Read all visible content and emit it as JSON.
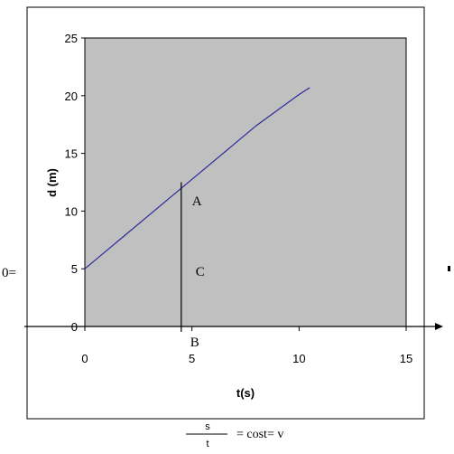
{
  "chart_data": {
    "type": "line",
    "title": "",
    "xlabel": "t(s)",
    "ylabel": "d (m)",
    "xlim": [
      0,
      15
    ],
    "ylim": [
      0,
      25
    ],
    "x_ticks": [
      "0",
      "5",
      "10",
      "15"
    ],
    "y_ticks": [
      "0",
      "5",
      "10",
      "15",
      "20",
      "25"
    ],
    "grid": false,
    "plot_background": "#c0c0c0",
    "line_color": "#2a2a9a",
    "series": [
      {
        "x": [
          0,
          2,
          4,
          6,
          8,
          10,
          10.5
        ],
        "y": [
          5,
          8.1,
          11.2,
          14.3,
          17.4,
          20.1,
          20.7
        ]
      }
    ],
    "vertical_marker": {
      "x": 4.5,
      "y_top": 12.5
    },
    "annotations": {
      "A": "A",
      "B": "B",
      "C": "C"
    }
  },
  "side_label": "0=",
  "formula": {
    "numerator": "s",
    "denominator": "t",
    "text": "= cost= v"
  }
}
